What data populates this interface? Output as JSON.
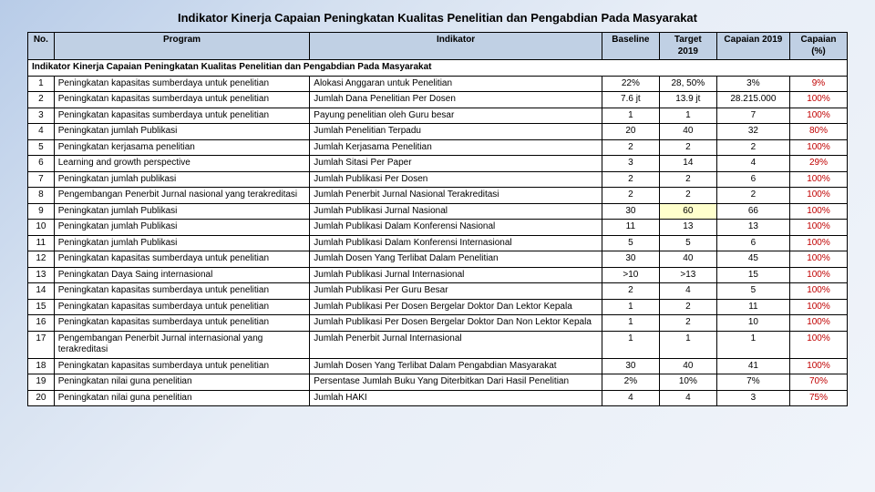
{
  "title": "Indikator Kinerja Capaian Peningkatan Kualitas Penelitian dan Pengabdian Pada Masyarakat",
  "headers": {
    "no": "No.",
    "program": "Program",
    "indikator": "Indikator",
    "baseline": "Baseline",
    "target": "Target 2019",
    "capaian": "Capaian 2019",
    "capaian_pct": "Capaian (%)"
  },
  "section_label": "Indikator Kinerja Capaian Peningkatan Kualitas Penelitian dan Pengabdian Pada Masyarakat",
  "rows": [
    {
      "no": "1",
      "program": "Peningkatan kapasitas sumberdaya untuk penelitian",
      "indikator": "Alokasi Anggaran untuk Penelitian",
      "baseline": "22%",
      "target": "28, 50%",
      "capaian": "3%",
      "pct": "9%"
    },
    {
      "no": "2",
      "program": "Peningkatan kapasitas sumberdaya untuk penelitian",
      "indikator": "Jumlah Dana Penelitian Per Dosen",
      "baseline": "7.6 jt",
      "target": "13.9 jt",
      "capaian": "28.215.000",
      "pct": "100%"
    },
    {
      "no": "3",
      "program": "Peningkatan kapasitas sumberdaya untuk penelitian",
      "indikator": "Payung penelitian oleh Guru besar",
      "baseline": "1",
      "target": "1",
      "capaian": "7",
      "pct": "100%"
    },
    {
      "no": "4",
      "program": "Peningkatan jumlah Publikasi",
      "indikator": "Jumlah Penelitian Terpadu",
      "baseline": "20",
      "target": "40",
      "capaian": "32",
      "pct": "80%"
    },
    {
      "no": "5",
      "program": "Peningkatan kerjasama penelitian",
      "indikator": "Jumlah Kerjasama Penelitian",
      "baseline": "2",
      "target": "2",
      "capaian": "2",
      "pct": "100%"
    },
    {
      "no": "6",
      "program": "Learning and growth perspective",
      "indikator": "Jumlah Sitasi Per Paper",
      "baseline": "3",
      "target": "14",
      "capaian": "4",
      "pct": "29%"
    },
    {
      "no": "7",
      "program": "Peningkatan jumlah publikasi",
      "indikator": "Jumlah Publikasi Per Dosen",
      "baseline": "2",
      "target": "2",
      "capaian": "6",
      "pct": "100%"
    },
    {
      "no": "8",
      "program": "Pengembangan Penerbit Jurnal nasional yang terakreditasi",
      "indikator": "Jumlah Penerbit Jurnal Nasional Terakreditasi",
      "baseline": "2",
      "target": "2",
      "capaian": "2",
      "pct": "100%"
    },
    {
      "no": "9",
      "program": "Peningkatan jumlah Publikasi",
      "indikator": "Jumlah Publikasi Jurnal Nasional",
      "baseline": "30",
      "target": "60",
      "capaian": "66",
      "pct": "100%",
      "highlight_target": true
    },
    {
      "no": "10",
      "program": "Peningkatan jumlah Publikasi",
      "indikator": "Jumlah Publikasi Dalam Konferensi Nasional",
      "baseline": "11",
      "target": "13",
      "capaian": "13",
      "pct": "100%"
    },
    {
      "no": "11",
      "program": "Peningkatan jumlah Publikasi",
      "indikator": "Jumlah Publikasi Dalam Konferensi Internasional",
      "baseline": "5",
      "target": "5",
      "capaian": "6",
      "pct": "100%"
    },
    {
      "no": "12",
      "program": "Peningkatan kapasitas sumberdaya untuk penelitian",
      "indikator": "Jumlah Dosen Yang Terlibat Dalam Penelitian",
      "baseline": "30",
      "target": "40",
      "capaian": "45",
      "pct": "100%"
    },
    {
      "no": "13",
      "program": "Peningkatan Daya Saing internasional",
      "indikator": "Jumlah Publikasi Jurnal Internasional",
      "baseline": ">10",
      "target": ">13",
      "capaian": "15",
      "pct": "100%"
    },
    {
      "no": "14",
      "program": "Peningkatan kapasitas sumberdaya untuk penelitian",
      "indikator": "Jumlah Publikasi Per Guru Besar",
      "baseline": "2",
      "target": "4",
      "capaian": "5",
      "pct": "100%"
    },
    {
      "no": "15",
      "program": "Peningkatan kapasitas sumberdaya untuk penelitian",
      "indikator": "Jumlah Publikasi Per Dosen Bergelar Doktor Dan Lektor Kepala",
      "baseline": "1",
      "target": "2",
      "capaian": "11",
      "pct": "100%"
    },
    {
      "no": "16",
      "program": "Peningkatan kapasitas sumberdaya untuk penelitian",
      "indikator": "Jumlah Publikasi Per Dosen Bergelar Doktor Dan Non Lektor Kepala",
      "baseline": "1",
      "target": "2",
      "capaian": "10",
      "pct": "100%"
    },
    {
      "no": "17",
      "program": "Pengembangan Penerbit Jurnal internasional yang terakreditasi",
      "indikator": "Jumlah Penerbit Jurnal Internasional",
      "baseline": "1",
      "target": "1",
      "capaian": "1",
      "pct": "100%"
    },
    {
      "no": "18",
      "program": "Peningkatan kapasitas sumberdaya untuk penelitian",
      "indikator": "Jumlah Dosen Yang Terlibat Dalam Pengabdian Masyarakat",
      "baseline": "30",
      "target": "40",
      "capaian": "41",
      "pct": "100%"
    },
    {
      "no": "19",
      "program": "Peningkatan nilai guna penelitian",
      "indikator": "Persentase Jumlah Buku Yang Diterbitkan Dari Hasil Penelitian",
      "baseline": "2%",
      "target": "10%",
      "capaian": "7%",
      "pct": "70%"
    },
    {
      "no": "20",
      "program": "Peningkatan nilai guna penelitian",
      "indikator": "Jumlah HAKI",
      "baseline": "4",
      "target": "4",
      "capaian": "3",
      "pct": "75%"
    }
  ]
}
